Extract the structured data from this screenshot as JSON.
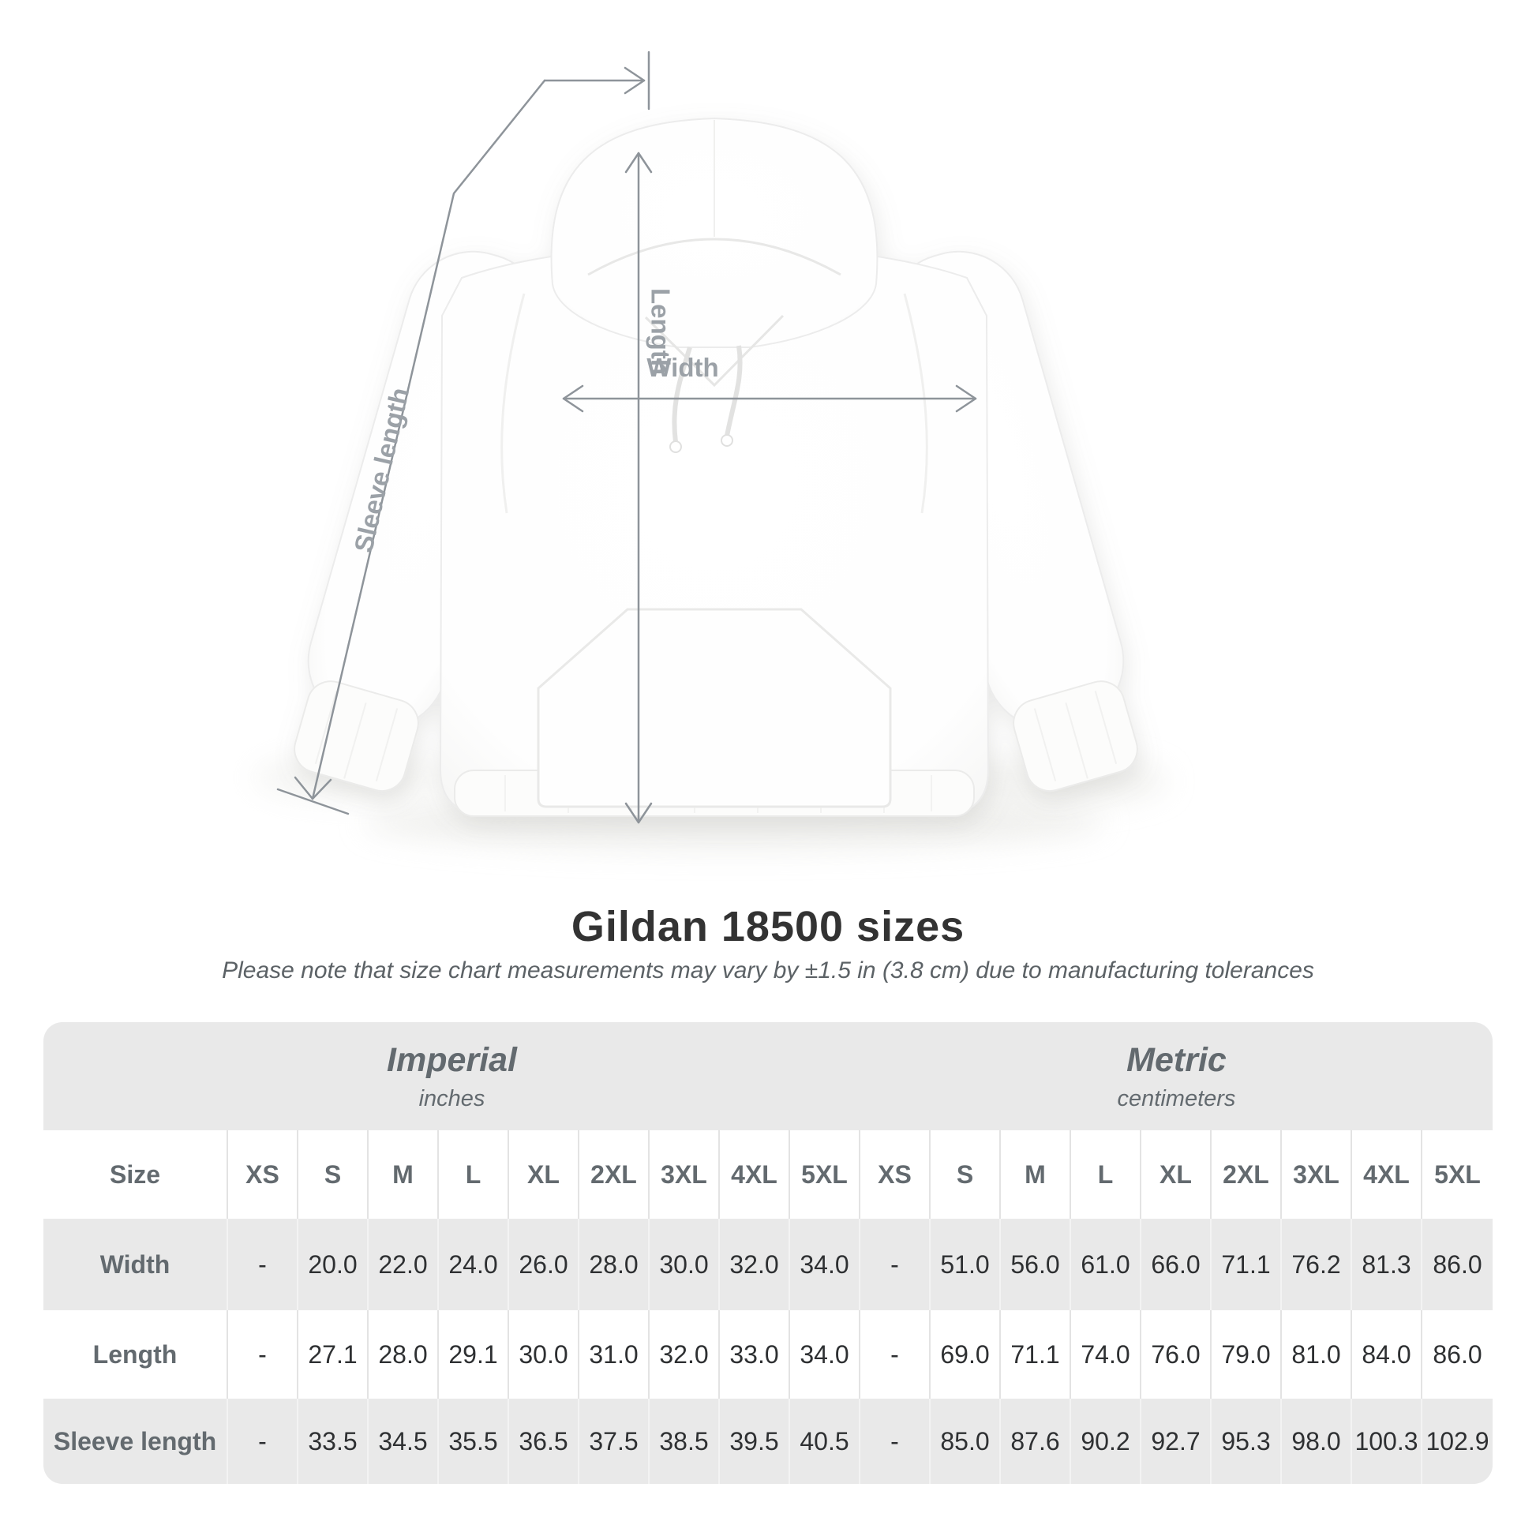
{
  "figure": {
    "width_label": "Width",
    "length_label": "Length",
    "sleeve_label": "Sleeve length"
  },
  "heading": {
    "title": "Gildan 18500 sizes",
    "note": "Please note that size chart measurements may vary by ±1.5 in (3.8 cm) due to manufacturing tolerances"
  },
  "size_chart": {
    "groups": [
      {
        "name": "Imperial",
        "unit": "inches"
      },
      {
        "name": "Metric",
        "unit": "centimeters"
      }
    ],
    "corner_label": "Size",
    "sizes": [
      "XS",
      "S",
      "M",
      "L",
      "XL",
      "2XL",
      "3XL",
      "4XL",
      "5XL"
    ],
    "rows": [
      {
        "label": "Width",
        "imperial": [
          "-",
          "20.0",
          "22.0",
          "24.0",
          "26.0",
          "28.0",
          "30.0",
          "32.0",
          "34.0"
        ],
        "metric": [
          "-",
          "51.0",
          "56.0",
          "61.0",
          "66.0",
          "71.1",
          "76.2",
          "81.3",
          "86.0"
        ]
      },
      {
        "label": "Length",
        "imperial": [
          "-",
          "27.1",
          "28.0",
          "29.1",
          "30.0",
          "31.0",
          "32.0",
          "33.0",
          "34.0"
        ],
        "metric": [
          "-",
          "69.0",
          "71.1",
          "74.0",
          "76.0",
          "79.0",
          "81.0",
          "84.0",
          "86.0"
        ]
      },
      {
        "label": "Sleeve length",
        "imperial": [
          "-",
          "33.5",
          "34.5",
          "35.5",
          "36.5",
          "37.5",
          "38.5",
          "39.5",
          "40.5"
        ],
        "metric": [
          "-",
          "85.0",
          "87.6",
          "90.2",
          "92.7",
          "95.3",
          "98.0",
          "100.3",
          "102.9"
        ]
      }
    ]
  },
  "colors": {
    "band_gray": "#e9e9e9",
    "separator_on_white": "#e3e3e3",
    "separator_on_gray": "#f3f3f3",
    "header_text": "#636a6f",
    "value_text": "#2e3032",
    "title_text": "#333333",
    "note_text": "#5c6266",
    "annotation_line": "#8e949a",
    "annotation_label": "#9ba1a7"
  }
}
